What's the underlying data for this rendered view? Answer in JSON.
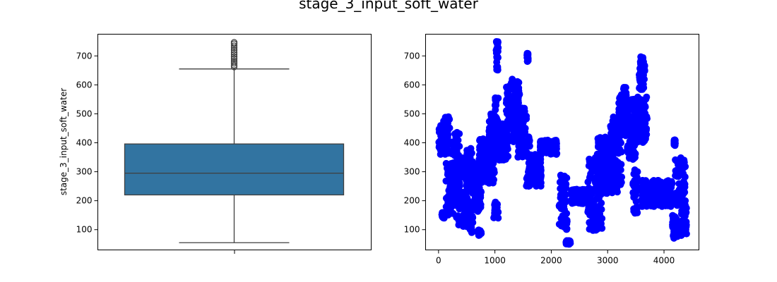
{
  "title": "stage_3_input_soft_water",
  "colors": {
    "box_fill": "#3274a1",
    "box_edge": "#3f3f3f",
    "scatter": "#0000ff"
  },
  "chart_data": [
    {
      "type": "box",
      "title": "",
      "xlabel": "",
      "ylabel": "stage_3_input_soft_water",
      "ylim": [
        30,
        775
      ],
      "yticks": [
        100,
        200,
        300,
        400,
        500,
        600,
        700
      ],
      "stats": {
        "whisker_low": 55,
        "q1": 220,
        "median": 295,
        "q3": 396,
        "whisker_high": 655
      },
      "fliers": [
        662,
        668,
        675,
        682,
        690,
        697,
        705,
        712,
        720,
        728,
        735,
        742,
        747
      ]
    },
    {
      "type": "scatter",
      "title": "",
      "xlabel": "",
      "ylabel": "",
      "xlim": [
        -230,
        4620
      ],
      "ylim": [
        30,
        775
      ],
      "xticks": [
        0,
        1000,
        2000,
        3000,
        4000
      ],
      "yticks": [
        100,
        200,
        300,
        400,
        500,
        600,
        700
      ],
      "segments": [
        {
          "x": [
            0,
            60
          ],
          "y": [
            350,
            460
          ]
        },
        {
          "x": [
            60,
            120
          ],
          "y": [
            140,
            160
          ]
        },
        {
          "x": [
            80,
            200
          ],
          "y": [
            360,
            490
          ]
        },
        {
          "x": [
            130,
            260
          ],
          "y": [
            150,
            330
          ]
        },
        {
          "x": [
            240,
            380
          ],
          "y": [
            200,
            440
          ]
        },
        {
          "x": [
            300,
            560
          ],
          "y": [
            110,
            350
          ]
        },
        {
          "x": [
            500,
            620
          ],
          "y": [
            90,
            400
          ]
        },
        {
          "x": [
            560,
            760
          ],
          "y": [
            160,
            340
          ]
        },
        {
          "x": [
            700,
            760
          ],
          "y": [
            80,
            100
          ]
        },
        {
          "x": [
            720,
            1000
          ],
          "y": [
            260,
            420
          ]
        },
        {
          "x": [
            880,
            1060
          ],
          "y": [
            340,
            500
          ]
        },
        {
          "x": [
            980,
            1060
          ],
          "y": [
            140,
            200
          ]
        },
        {
          "x": [
            1000,
            1060
          ],
          "y": [
            380,
            580
          ]
        },
        {
          "x": [
            1020,
            1060
          ],
          "y": [
            650,
            750
          ]
        },
        {
          "x": [
            1060,
            1240
          ],
          "y": [
            340,
            470
          ]
        },
        {
          "x": [
            1200,
            1440
          ],
          "y": [
            400,
            620
          ]
        },
        {
          "x": [
            1400,
            1560
          ],
          "y": [
            350,
            520
          ]
        },
        {
          "x": [
            1560,
            1620
          ],
          "y": [
            240,
            420
          ]
        },
        {
          "x": [
            1570,
            1590
          ],
          "y": [
            680,
            710
          ]
        },
        {
          "x": [
            1600,
            1820
          ],
          "y": [
            250,
            360
          ]
        },
        {
          "x": [
            1800,
            2100
          ],
          "y": [
            360,
            410
          ]
        },
        {
          "x": [
            2140,
            2280
          ],
          "y": [
            100,
            290
          ]
        },
        {
          "x": [
            2260,
            2340
          ],
          "y": [
            50,
            62
          ]
        },
        {
          "x": [
            2350,
            2700
          ],
          "y": [
            190,
            240
          ]
        },
        {
          "x": [
            2650,
            2900
          ],
          "y": [
            90,
            350
          ]
        },
        {
          "x": [
            2800,
            3100
          ],
          "y": [
            220,
            420
          ]
        },
        {
          "x": [
            3050,
            3250
          ],
          "y": [
            230,
            490
          ]
        },
        {
          "x": [
            3200,
            3340
          ],
          "y": [
            420,
            600
          ]
        },
        {
          "x": [
            3350,
            3500
          ],
          "y": [
            340,
            550
          ]
        },
        {
          "x": [
            3450,
            3530
          ],
          "y": [
            150,
            310
          ]
        },
        {
          "x": [
            3480,
            3700
          ],
          "y": [
            400,
            560
          ]
        },
        {
          "x": [
            3560,
            3660
          ],
          "y": [
            580,
            700
          ]
        },
        {
          "x": [
            3600,
            4150
          ],
          "y": [
            180,
            270
          ]
        },
        {
          "x": [
            4150,
            4250
          ],
          "y": [
            70,
            150
          ]
        },
        {
          "x": [
            4180,
            4200
          ],
          "y": [
            390,
            410
          ]
        },
        {
          "x": [
            4200,
            4380
          ],
          "y": [
            180,
            350
          ]
        },
        {
          "x": [
            4300,
            4400
          ],
          "y": [
            80,
            200
          ]
        }
      ]
    }
  ]
}
